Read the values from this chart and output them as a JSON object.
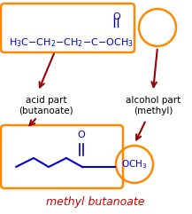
{
  "bg_color": "#ffffff",
  "formula_color": "#0000cc",
  "label_color": "#000000",
  "arrow_color": "#990000",
  "box_color": "#ff8800",
  "title_color": "#cc0000",
  "title": "methyl butanoate",
  "acid_label": "acid part\n(butanoate)",
  "alcohol_label": "alcohol part\n(methyl)",
  "figsize": [
    2.17,
    2.41
  ],
  "dpi": 100
}
